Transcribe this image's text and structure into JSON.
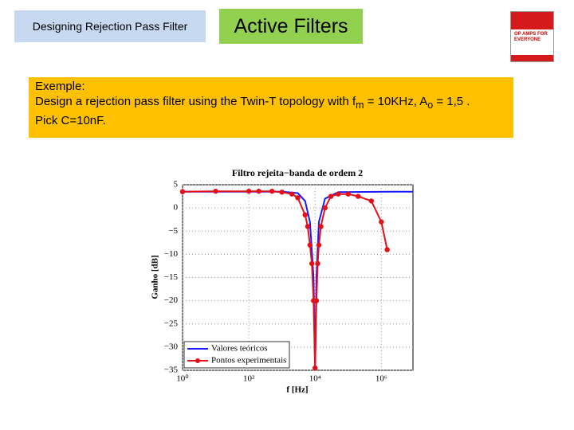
{
  "header": {
    "section": "Designing Rejection Pass Filter",
    "title": "Active Filters",
    "book": "OP AMPS FOR EVERYONE"
  },
  "example": {
    "heading": "Exemple:",
    "line1": [
      "Design a rejection pass filter using the Twin-T topology with f",
      "m",
      " = 10KHz, A",
      "o",
      " = 1,5 ."
    ],
    "line2": "Pick C=10nF."
  },
  "chart_data": {
    "type": "line",
    "title": "Filtro rejeita−banda de ordem 2",
    "x_label": "f [Hz]",
    "y_label": "Ganho [dB]",
    "xscale": "log",
    "xlim": [
      1,
      9000000
    ],
    "ylim": [
      -35,
      5
    ],
    "xticks": [
      {
        "value": 1,
        "label": "10⁰"
      },
      {
        "value": 100,
        "label": "10²"
      },
      {
        "value": 10000,
        "label": "10⁴"
      },
      {
        "value": 1000000,
        "label": "10⁶"
      }
    ],
    "yticks": [
      {
        "value": -35,
        "label": "−35"
      },
      {
        "value": -30,
        "label": "−30"
      },
      {
        "value": -25,
        "label": "−25"
      },
      {
        "value": -20,
        "label": "−20"
      },
      {
        "value": -15,
        "label": "−15"
      },
      {
        "value": -10,
        "label": "−10"
      },
      {
        "value": -5,
        "label": "−5"
      },
      0,
      5
    ],
    "grid": true,
    "legend": "lower left",
    "series": [
      {
        "name": "Valores teóricos",
        "color": "#1a1aff",
        "marker": false,
        "x": [
          1,
          1000,
          3000,
          5000,
          7000,
          9000,
          10000,
          11000,
          13000,
          20000,
          50000,
          2000000,
          9000000
        ],
        "values": [
          3.5,
          3.5,
          3.2,
          1.5,
          -3,
          -15,
          -35,
          -15,
          -3,
          2,
          3.4,
          3.5,
          3.5
        ]
      },
      {
        "name": "Pontos experimentais",
        "color": "#e3101a",
        "marker": true,
        "x": [
          1,
          10,
          100,
          200,
          500,
          1000,
          2000,
          3000,
          5000,
          6000,
          7000,
          8000,
          9000,
          10000,
          11000,
          12000,
          13000,
          15000,
          20000,
          30000,
          50000,
          100000,
          200000,
          500000,
          1000000,
          1500000
        ],
        "values": [
          3.5,
          3.6,
          3.6,
          3.6,
          3.6,
          3.4,
          3.0,
          2.2,
          -1.5,
          -4,
          -8,
          -12,
          -20,
          -34.5,
          -20,
          -12,
          -8,
          -4,
          0,
          2.5,
          3,
          3,
          2.5,
          1.5,
          -3,
          -9
        ]
      }
    ]
  }
}
